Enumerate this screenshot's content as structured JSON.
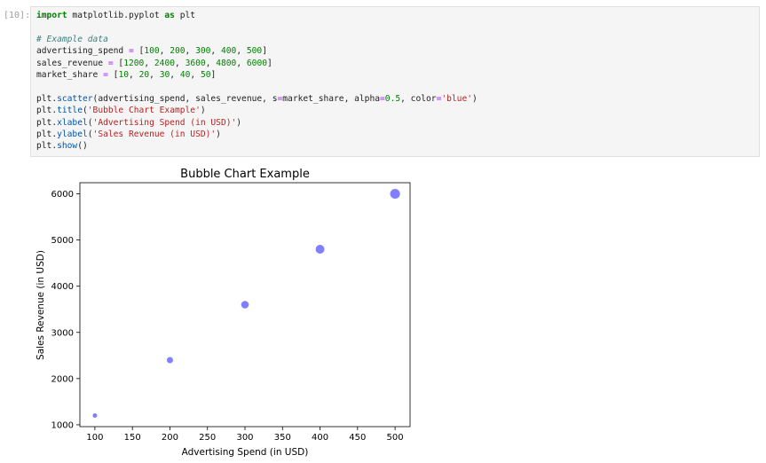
{
  "cell": {
    "prompt": "[10]:",
    "code_lines": [
      [
        {
          "t": "import",
          "c": "kw"
        },
        {
          "t": " matplotlib.pyplot ",
          "c": ""
        },
        {
          "t": "as",
          "c": "kw"
        },
        {
          "t": " plt",
          "c": ""
        }
      ],
      [],
      [
        {
          "t": "# Example data",
          "c": "cm"
        }
      ],
      [
        {
          "t": "advertising_spend ",
          "c": ""
        },
        {
          "t": "=",
          "c": "op"
        },
        {
          "t": " [",
          "c": ""
        },
        {
          "t": "100",
          "c": "num"
        },
        {
          "t": ", ",
          "c": ""
        },
        {
          "t": "200",
          "c": "num"
        },
        {
          "t": ", ",
          "c": ""
        },
        {
          "t": "300",
          "c": "num"
        },
        {
          "t": ", ",
          "c": ""
        },
        {
          "t": "400",
          "c": "num"
        },
        {
          "t": ", ",
          "c": ""
        },
        {
          "t": "500",
          "c": "num"
        },
        {
          "t": "]",
          "c": ""
        }
      ],
      [
        {
          "t": "sales_revenue ",
          "c": ""
        },
        {
          "t": "=",
          "c": "op"
        },
        {
          "t": " [",
          "c": ""
        },
        {
          "t": "1200",
          "c": "num"
        },
        {
          "t": ", ",
          "c": ""
        },
        {
          "t": "2400",
          "c": "num"
        },
        {
          "t": ", ",
          "c": ""
        },
        {
          "t": "3600",
          "c": "num"
        },
        {
          "t": ", ",
          "c": ""
        },
        {
          "t": "4800",
          "c": "num"
        },
        {
          "t": ", ",
          "c": ""
        },
        {
          "t": "6000",
          "c": "num"
        },
        {
          "t": "]",
          "c": ""
        }
      ],
      [
        {
          "t": "market_share ",
          "c": ""
        },
        {
          "t": "=",
          "c": "op"
        },
        {
          "t": " [",
          "c": ""
        },
        {
          "t": "10",
          "c": "num"
        },
        {
          "t": ", ",
          "c": ""
        },
        {
          "t": "20",
          "c": "num"
        },
        {
          "t": ", ",
          "c": ""
        },
        {
          "t": "30",
          "c": "num"
        },
        {
          "t": ", ",
          "c": ""
        },
        {
          "t": "40",
          "c": "num"
        },
        {
          "t": ", ",
          "c": ""
        },
        {
          "t": "50",
          "c": "num"
        },
        {
          "t": "]",
          "c": ""
        }
      ],
      [],
      [
        {
          "t": "plt.",
          "c": ""
        },
        {
          "t": "scatter",
          "c": "fn"
        },
        {
          "t": "(advertising_spend, sales_revenue, s",
          "c": ""
        },
        {
          "t": "=",
          "c": "op"
        },
        {
          "t": "market_share, alpha",
          "c": ""
        },
        {
          "t": "=",
          "c": "op"
        },
        {
          "t": "0.5",
          "c": "num"
        },
        {
          "t": ", color",
          "c": ""
        },
        {
          "t": "=",
          "c": "op"
        },
        {
          "t": "'blue'",
          "c": "str"
        },
        {
          "t": ")",
          "c": ""
        }
      ],
      [
        {
          "t": "plt.",
          "c": ""
        },
        {
          "t": "title",
          "c": "fn"
        },
        {
          "t": "(",
          "c": ""
        },
        {
          "t": "'Bubble Chart Example'",
          "c": "str"
        },
        {
          "t": ")",
          "c": ""
        }
      ],
      [
        {
          "t": "plt.",
          "c": ""
        },
        {
          "t": "xlabel",
          "c": "fn"
        },
        {
          "t": "(",
          "c": ""
        },
        {
          "t": "'Advertising Spend (in USD)'",
          "c": "str"
        },
        {
          "t": ")",
          "c": ""
        }
      ],
      [
        {
          "t": "plt.",
          "c": ""
        },
        {
          "t": "ylabel",
          "c": "fn"
        },
        {
          "t": "(",
          "c": ""
        },
        {
          "t": "'Sales Revenue (in USD)'",
          "c": "str"
        },
        {
          "t": ")",
          "c": ""
        }
      ],
      [
        {
          "t": "plt.",
          "c": ""
        },
        {
          "t": "show",
          "c": "fn"
        },
        {
          "t": "()",
          "c": ""
        }
      ]
    ]
  },
  "colors": {
    "kw": "#008000",
    "cm": "#408080",
    "num": "#008000",
    "op": "#aa22ff",
    "str": "#ba2121",
    "fn": "#0055aa",
    "marker": "#0000ff"
  },
  "chart_data": {
    "type": "scatter",
    "title": "Bubble Chart Example",
    "xlabel": "Advertising Spend (in USD)",
    "ylabel": "Sales Revenue (in USD)",
    "x": [
      100,
      200,
      300,
      400,
      500
    ],
    "y": [
      1200,
      2400,
      3600,
      4800,
      6000
    ],
    "sizes": [
      10,
      20,
      30,
      40,
      50
    ],
    "alpha": 0.5,
    "color": "blue",
    "xlim": [
      80,
      520
    ],
    "ylim": [
      960,
      6240
    ],
    "xticks": [
      100,
      150,
      200,
      250,
      300,
      350,
      400,
      450,
      500
    ],
    "yticks": [
      1000,
      2000,
      3000,
      4000,
      5000,
      6000
    ],
    "grid": false
  }
}
